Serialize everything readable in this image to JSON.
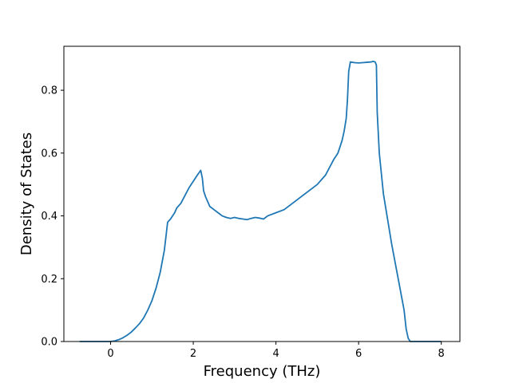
{
  "chart_data": {
    "type": "line",
    "title": "",
    "xlabel": "Frequency (THz)",
    "ylabel": "Density of States",
    "xlim": [
      -1.13,
      8.45
    ],
    "ylim": [
      0.0,
      0.94
    ],
    "xticks": [
      0,
      2,
      4,
      6,
      8
    ],
    "xtick_labels": [
      "0",
      "2",
      "4",
      "6",
      "8"
    ],
    "yticks": [
      0.0,
      0.2,
      0.4,
      0.6,
      0.8
    ],
    "ytick_labels": [
      "0.0",
      "0.2",
      "0.4",
      "0.6",
      "0.8"
    ],
    "grid": false,
    "legend": "none",
    "line_color": "#1f77b4",
    "series": [
      {
        "x": [
          -0.75,
          -0.5,
          -0.25,
          0.0,
          0.1,
          0.2,
          0.3,
          0.4,
          0.5,
          0.6,
          0.7,
          0.8,
          0.9,
          1.0,
          1.1,
          1.2,
          1.3,
          1.38,
          1.45,
          1.5,
          1.55,
          1.6,
          1.7,
          1.8,
          1.9,
          2.0,
          2.1,
          2.18,
          2.22,
          2.25,
          2.3,
          2.4,
          2.5,
          2.6,
          2.7,
          2.8,
          2.9,
          3.0,
          3.1,
          3.2,
          3.3,
          3.4,
          3.5,
          3.6,
          3.7,
          3.8,
          4.0,
          4.2,
          4.4,
          4.6,
          4.8,
          5.0,
          5.2,
          5.4,
          5.5,
          5.6,
          5.65,
          5.7,
          5.73,
          5.76,
          5.8,
          5.9,
          6.0,
          6.1,
          6.2,
          6.3,
          6.35,
          6.4,
          6.43,
          6.45,
          6.5,
          6.6,
          6.7,
          6.8,
          6.9,
          7.0,
          7.1,
          7.15,
          7.2,
          7.25,
          7.3,
          7.5,
          7.8,
          8.0
        ],
        "y": [
          0.0,
          0.0,
          0.0,
          0.0,
          0.002,
          0.006,
          0.012,
          0.02,
          0.03,
          0.043,
          0.057,
          0.075,
          0.1,
          0.13,
          0.17,
          0.22,
          0.29,
          0.38,
          0.39,
          0.4,
          0.41,
          0.425,
          0.44,
          0.465,
          0.49,
          0.51,
          0.53,
          0.545,
          0.52,
          0.48,
          0.46,
          0.43,
          0.42,
          0.41,
          0.4,
          0.395,
          0.392,
          0.395,
          0.392,
          0.39,
          0.388,
          0.392,
          0.395,
          0.393,
          0.39,
          0.4,
          0.41,
          0.42,
          0.44,
          0.46,
          0.48,
          0.5,
          0.53,
          0.58,
          0.6,
          0.64,
          0.67,
          0.71,
          0.77,
          0.86,
          0.89,
          0.888,
          0.887,
          0.888,
          0.889,
          0.89,
          0.892,
          0.89,
          0.88,
          0.73,
          0.6,
          0.47,
          0.39,
          0.31,
          0.24,
          0.17,
          0.1,
          0.04,
          0.01,
          0.0,
          0.0,
          0.0,
          0.0,
          0.0
        ]
      }
    ]
  }
}
